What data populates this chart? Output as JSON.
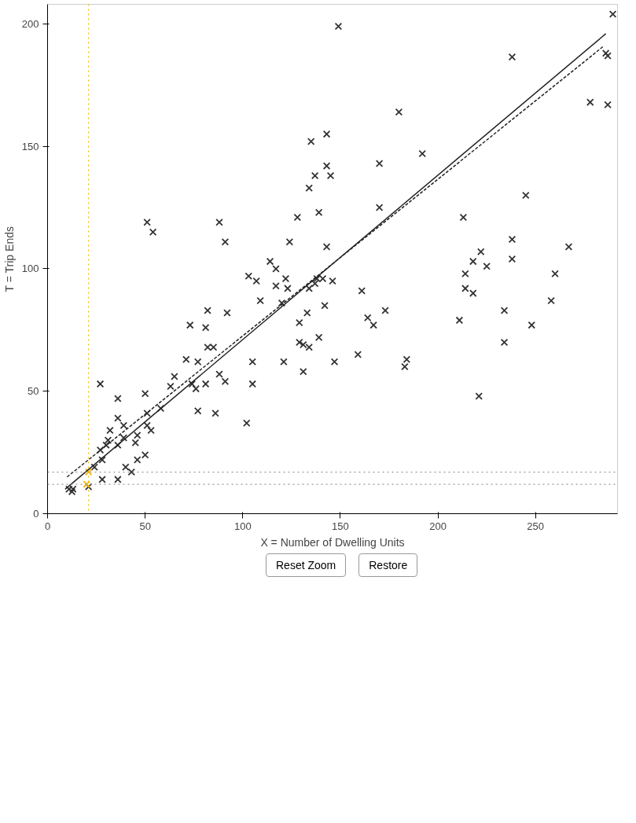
{
  "chart_data": {
    "type": "scatter",
    "xlabel": "X = Number of Dwelling Units",
    "ylabel": "T = Trip Ends",
    "xlim": [
      0,
      292
    ],
    "ylim": [
      0,
      208
    ],
    "xticks": [
      0,
      50,
      100,
      150,
      200,
      250
    ],
    "yticks": [
      0,
      50,
      100,
      150,
      200
    ],
    "grid": false,
    "marker": "cross",
    "series": [
      {
        "color": "#333333",
        "x": [
          289.6,
          286,
          287,
          287,
          278,
          267,
          260,
          258,
          248,
          245,
          238,
          238,
          238,
          234,
          234,
          225,
          222,
          218,
          218,
          214,
          214,
          213,
          221,
          211,
          192,
          180,
          184,
          183,
          173,
          170,
          170,
          167,
          164,
          161,
          159,
          149,
          143,
          143,
          145,
          139,
          142,
          139,
          147,
          135,
          137,
          134,
          143,
          146,
          141,
          138,
          137,
          134,
          133,
          134,
          131,
          129,
          131,
          129,
          128,
          124,
          123,
          122,
          121,
          117,
          117,
          114,
          120,
          109,
          107,
          105,
          105,
          103,
          102,
          91,
          88,
          91,
          88,
          92,
          82,
          81,
          85,
          82,
          81,
          77,
          86,
          77,
          76,
          74,
          71,
          73,
          65,
          63,
          58,
          50,
          51,
          51,
          54,
          51,
          53,
          46,
          45,
          50,
          46,
          43,
          40,
          36,
          36,
          39,
          39,
          36,
          36,
          32,
          31,
          30,
          27,
          28,
          27,
          24,
          28,
          21,
          13,
          11,
          12.5
        ],
        "values": [
          204,
          188,
          187,
          167,
          168,
          109,
          98,
          87,
          77,
          130,
          186.5,
          112,
          104,
          83,
          70,
          101,
          107,
          103,
          90,
          98,
          92,
          121,
          48,
          79,
          147,
          164,
          63,
          60,
          83,
          143,
          125,
          77,
          80,
          91,
          65,
          199,
          155,
          142,
          138,
          123,
          85,
          72,
          62,
          152,
          138,
          133,
          109,
          95,
          96,
          96,
          94,
          92,
          82,
          68,
          69,
          70,
          58,
          78,
          121,
          111,
          92,
          96,
          62,
          100,
          93,
          103,
          86,
          87,
          95,
          62,
          53,
          97,
          37,
          111,
          119,
          54,
          57,
          82,
          83,
          76,
          68,
          68,
          53,
          42,
          41,
          62,
          51,
          53,
          63,
          77,
          56,
          52,
          43,
          49,
          41,
          36,
          115,
          119,
          34,
          32,
          29,
          24,
          22,
          17,
          19,
          47,
          39,
          36,
          31,
          28,
          14,
          34,
          30,
          28,
          26,
          22,
          53,
          19,
          14,
          11,
          10,
          10,
          9
        ]
      },
      {
        "type": "scatter",
        "color": "#f5b800",
        "x": [
          21,
          20
        ],
        "values": [
          17,
          12
        ]
      },
      {
        "type": "line",
        "color": "#222222",
        "line_style": "solid",
        "marker": "none",
        "x": [
          9,
          286
        ],
        "values": [
          10,
          196
        ]
      },
      {
        "type": "line",
        "color": "#222222",
        "line_style": "dashed",
        "marker": "none",
        "x": [
          10,
          285
        ],
        "values": [
          15,
          191
        ]
      }
    ],
    "ref_lines": [
      {
        "axis": "x",
        "value": 21,
        "color": "#f5b800",
        "line_style": "dotted"
      },
      {
        "axis": "y",
        "value": 17,
        "color": "#999999",
        "line_style": "dotted"
      },
      {
        "axis": "y",
        "value": 12,
        "color": "#999999",
        "line_style": "dotted"
      }
    ],
    "annotations": [
      "Reset Zoom",
      "Restore"
    ]
  }
}
